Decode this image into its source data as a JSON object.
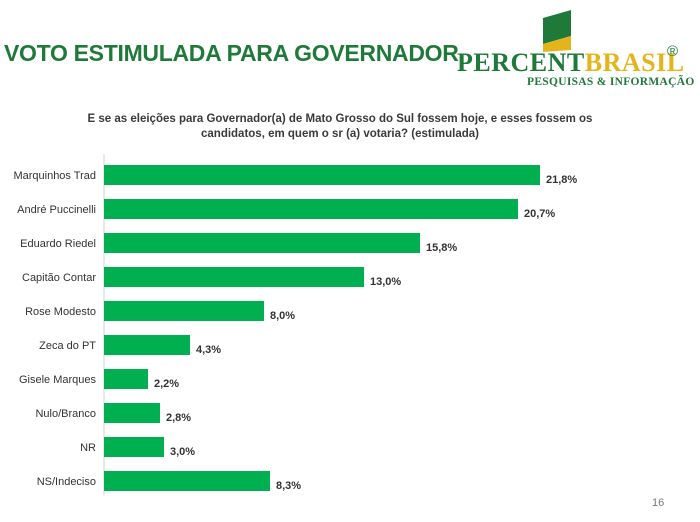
{
  "title": "VOTO ESTIMULADA PARA GOVERNADOR",
  "logo": {
    "part1": "PERCENT",
    "part2": "BRASIL",
    "registered": "®",
    "subtitle": "PESQUISAS & INFORMAÇÃO",
    "colors": {
      "green": "#1f7a3a",
      "gold": "#e3b51a"
    }
  },
  "question": "E se as eleições para Governador(a) de Mato Grosso do Sul fossem hoje, e esses fossem os candidatos, em quem o sr (a) votaria?  (estimulada)",
  "chart_data": {
    "type": "bar",
    "orientation": "horizontal",
    "categories": [
      "Marquinhos Trad",
      "André Puccinelli",
      "Eduardo Riedel",
      "Capitão Contar",
      "Rose Modesto",
      "Zeca do PT",
      "Gisele Marques",
      "Nulo/Branco",
      "NR",
      "NS/Indeciso"
    ],
    "values": [
      21.8,
      20.7,
      15.8,
      13.0,
      8.0,
      4.3,
      2.2,
      2.8,
      3.0,
      8.3
    ],
    "data_labels": [
      "21,8%",
      "20,7%",
      "15,8%",
      "13,0%",
      "8,0%",
      "4,3%",
      "2,2%",
      "2,8%",
      "3,0%",
      "8,3%"
    ],
    "xlim": [
      0,
      21.8
    ],
    "grid": false,
    "legend": "none",
    "bar_color": "#00b050"
  },
  "page_number": "16"
}
